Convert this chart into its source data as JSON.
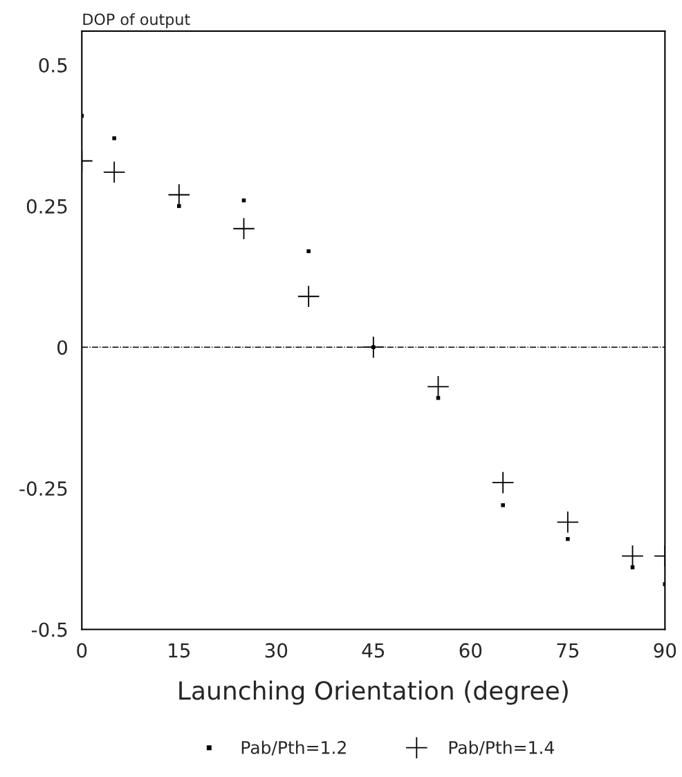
{
  "chart_data": {
    "type": "scatter",
    "xlabel": "Launching Orientation (degree)",
    "ylabel": "DOP of output",
    "x": [
      0,
      5,
      15,
      25,
      35,
      45,
      55,
      65,
      75,
      85,
      90
    ],
    "series": [
      {
        "name": "Pab/Pth=1.2",
        "color": "#000000",
        "marker": "square",
        "values": [
          0.41,
          0.37,
          0.25,
          0.26,
          0.17,
          0,
          -0.09,
          -0.28,
          -0.34,
          -0.39,
          -0.42
        ]
      },
      {
        "name": "Pab/Pth=1.4",
        "color": "#000000",
        "marker": "cross",
        "values": [
          0.33,
          0.31,
          0.27,
          0.21,
          0.09,
          0,
          -0.07,
          -0.24,
          -0.31,
          -0.37,
          -0.37
        ]
      }
    ],
    "xlim": [
      0,
      90
    ],
    "xticks": [
      0,
      15,
      30,
      45,
      60,
      75,
      90
    ],
    "ylim": [
      -0.5,
      0.56
    ],
    "yticks": [
      -0.5,
      -0.25,
      0,
      0.25,
      0.5
    ],
    "ref_lines": [
      {
        "axis": "y",
        "value": 0,
        "line_style": "dashdot",
        "color": "#000000"
      }
    ],
    "grid": false,
    "legend": "bottom"
  }
}
